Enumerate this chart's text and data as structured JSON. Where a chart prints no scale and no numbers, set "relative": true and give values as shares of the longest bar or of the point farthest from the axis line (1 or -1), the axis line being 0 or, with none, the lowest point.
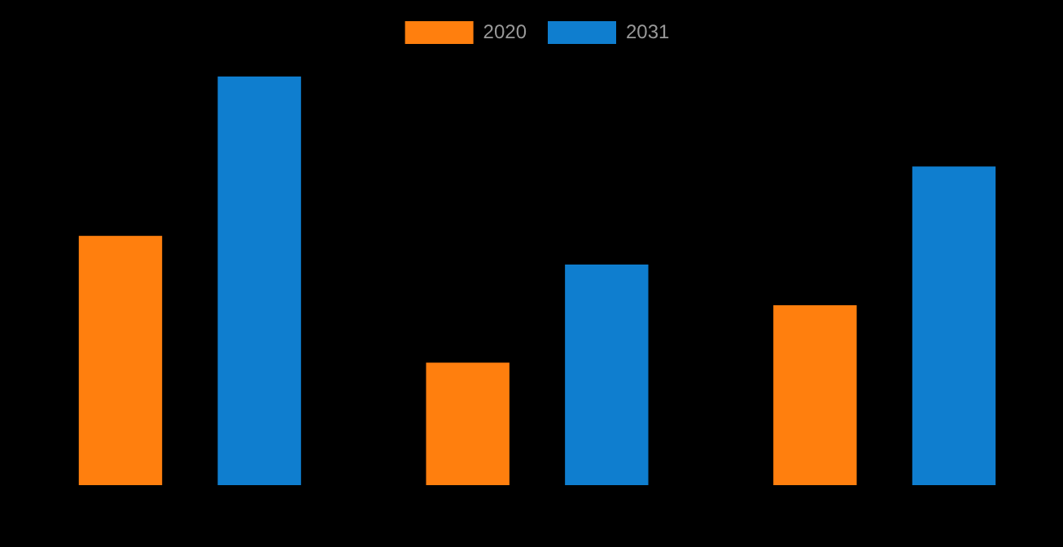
{
  "chart_data": {
    "type": "bar",
    "relative": true,
    "categories": [
      null,
      null,
      null
    ],
    "legend": "top",
    "series": [
      {
        "name": "2020",
        "color": "#ff7f0e",
        "values": [
          0.61,
          0.3,
          0.44
        ]
      },
      {
        "name": "2031",
        "color": "#0f7ecf",
        "values": [
          1,
          0.54,
          0.78
        ]
      }
    ]
  }
}
